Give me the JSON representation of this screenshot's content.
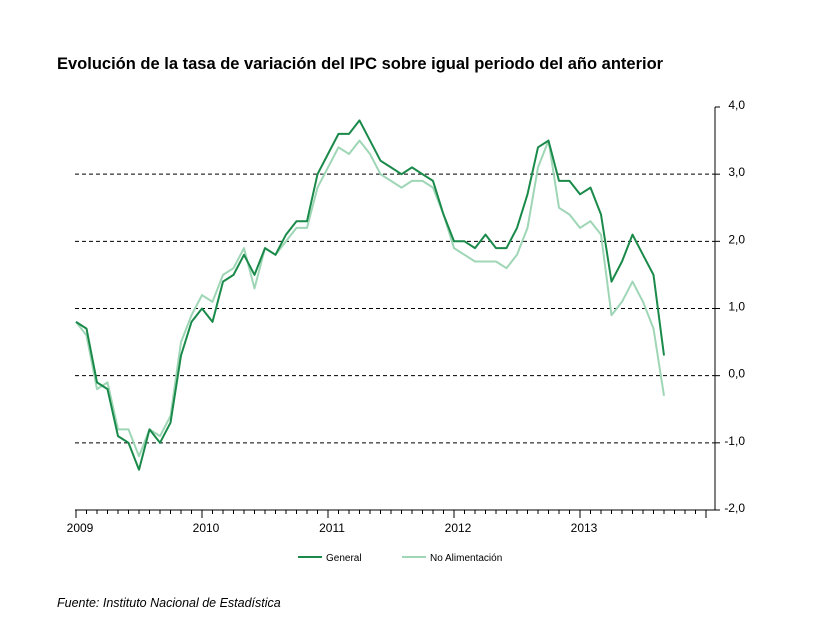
{
  "title": "Evolución de la tasa de variación del IPC sobre igual  periodo del año anterior",
  "source": "Fuente: Instituto Nacional de Estadística",
  "chart_data": {
    "type": "line",
    "title": "Evolución de la tasa de variación del IPC sobre igual  periodo del año anterior",
    "xlabel": "",
    "ylabel": "",
    "ylim": [
      -2.0,
      4.0
    ],
    "y_ticks": [
      "4,0",
      "3,0",
      "2,0",
      "1,0",
      "0,0",
      "-1,0",
      "-2,0"
    ],
    "y_tick_values": [
      4,
      3,
      2,
      1,
      0,
      -1,
      -2
    ],
    "x_ticks": [
      "2009",
      "2010",
      "2011",
      "2012",
      "2013"
    ],
    "grid": "dashed horizontal lines at 3, 2, 1, 0 and -1",
    "legend_position": "bottom-center",
    "x": [
      "2009-01",
      "2009-02",
      "2009-03",
      "2009-04",
      "2009-05",
      "2009-06",
      "2009-07",
      "2009-08",
      "2009-09",
      "2009-10",
      "2009-11",
      "2009-12",
      "2010-01",
      "2010-02",
      "2010-03",
      "2010-04",
      "2010-05",
      "2010-06",
      "2010-07",
      "2010-08",
      "2010-09",
      "2010-10",
      "2010-11",
      "2010-12",
      "2011-01",
      "2011-02",
      "2011-03",
      "2011-04",
      "2011-05",
      "2011-06",
      "2011-07",
      "2011-08",
      "2011-09",
      "2011-10",
      "2011-11",
      "2011-12",
      "2012-01",
      "2012-02",
      "2012-03",
      "2012-04",
      "2012-05",
      "2012-06",
      "2012-07",
      "2012-08",
      "2012-09",
      "2012-10",
      "2012-11",
      "2012-12",
      "2013-01",
      "2013-02",
      "2013-03",
      "2013-04",
      "2013-05",
      "2013-06",
      "2013-07",
      "2013-08",
      "2013-09"
    ],
    "series": [
      {
        "name": "General",
        "color": "#1a8a4a",
        "values": [
          0.8,
          0.7,
          -0.1,
          -0.2,
          -0.9,
          -1.0,
          -1.4,
          -0.8,
          -1.0,
          -0.7,
          0.3,
          0.8,
          1.0,
          0.8,
          1.4,
          1.5,
          1.8,
          1.5,
          1.9,
          1.8,
          2.1,
          2.3,
          2.3,
          3.0,
          3.3,
          3.6,
          3.6,
          3.8,
          3.5,
          3.2,
          3.1,
          3.0,
          3.1,
          3.0,
          2.9,
          2.4,
          2.0,
          2.0,
          1.9,
          2.1,
          1.9,
          1.9,
          2.2,
          2.7,
          3.4,
          3.5,
          2.9,
          2.9,
          2.7,
          2.8,
          2.4,
          1.4,
          1.7,
          2.1,
          1.8,
          1.5,
          0.3
        ]
      },
      {
        "name": "No Alimentación",
        "color": "#9fd6b6",
        "values": [
          0.8,
          0.6,
          -0.2,
          -0.1,
          -0.8,
          -0.8,
          -1.2,
          -0.8,
          -0.9,
          -0.6,
          0.5,
          0.9,
          1.2,
          1.1,
          1.5,
          1.6,
          1.9,
          1.3,
          1.9,
          1.8,
          2.0,
          2.2,
          2.2,
          2.8,
          3.1,
          3.4,
          3.3,
          3.5,
          3.3,
          3.0,
          2.9,
          2.8,
          2.9,
          2.9,
          2.8,
          2.4,
          1.9,
          1.8,
          1.7,
          1.7,
          1.7,
          1.6,
          1.8,
          2.2,
          3.1,
          3.5,
          2.5,
          2.4,
          2.2,
          2.3,
          2.1,
          0.9,
          1.1,
          1.4,
          1.1,
          0.7,
          -0.3
        ]
      }
    ]
  }
}
